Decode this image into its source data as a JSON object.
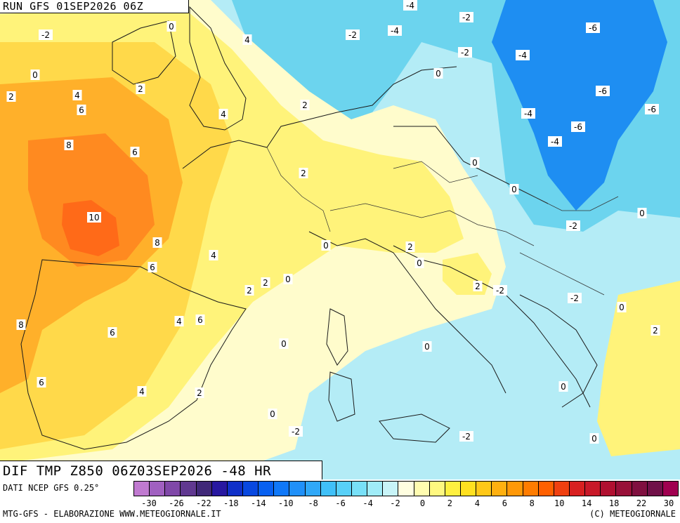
{
  "header": {
    "run_label": "RUN GFS 01SEP2026 06Z"
  },
  "title": {
    "text": "DIF TMP Z850 06Z03SEP2026 -48 HR"
  },
  "footer": {
    "source": "DATI NCEP GFS 0.25°",
    "credit_left": "MTG-GFS - ELABORAZIONE WWW.METEOGIORNALE.IT",
    "credit_right": "(C) METEOGIORNALE"
  },
  "legend": {
    "colors": [
      "#c07ad0",
      "#a060c0",
      "#8048a8",
      "#603890",
      "#402878",
      "#2818a0",
      "#1030c8",
      "#0848e0",
      "#0860f0",
      "#1078f8",
      "#2090f8",
      "#30a8f8",
      "#40c0f8",
      "#58d0f8",
      "#78e0f8",
      "#a0ecf8",
      "#c8f4f8",
      "#fffee0",
      "#fffcb0",
      "#fff880",
      "#fff040",
      "#ffe020",
      "#ffc818",
      "#ffb010",
      "#ff9808",
      "#ff7c00",
      "#ff6000",
      "#f04010",
      "#d82020",
      "#c81828",
      "#b01030",
      "#981038",
      "#801040",
      "#701048",
      "#a00050"
    ],
    "ticks": [
      "-30",
      "-26",
      "-22",
      "-18",
      "-14",
      "-10",
      "-8",
      "-6",
      "-4",
      "-2",
      "0",
      "2",
      "4",
      "6",
      "8",
      "10",
      "14",
      "18",
      "22",
      "30"
    ]
  },
  "map": {
    "colors": {
      "sea": "#6cd4ee",
      "deep_blue": "#1e8ef2",
      "light_cyan": "#b4ecf6",
      "pale": "#fffccc",
      "yellow": "#fff37a",
      "gold": "#ffd94a",
      "orange": "#ffb02a",
      "deep_orange": "#ff8a20",
      "red_orange": "#ff6a18"
    },
    "labels": [
      "-2",
      "0",
      "2",
      "4",
      "6",
      "8",
      "10",
      "-4",
      "-6",
      "-2",
      "0",
      "2",
      "4",
      "6",
      "8",
      "-4",
      "-6",
      "-2",
      "0",
      "4",
      "2",
      "0",
      "-2",
      "0",
      "-4",
      "-6",
      "-4",
      "-6",
      "-4",
      "-2",
      "0",
      "2",
      "0",
      "-2",
      "0",
      "2",
      "4",
      "6",
      "8",
      "6",
      "4",
      "2",
      "-2",
      "-2",
      "0",
      "2",
      "0",
      "0",
      "2",
      "0",
      "6",
      "4",
      "6",
      "4",
      "2",
      "0",
      "-2",
      "2",
      "0",
      "0"
    ]
  }
}
